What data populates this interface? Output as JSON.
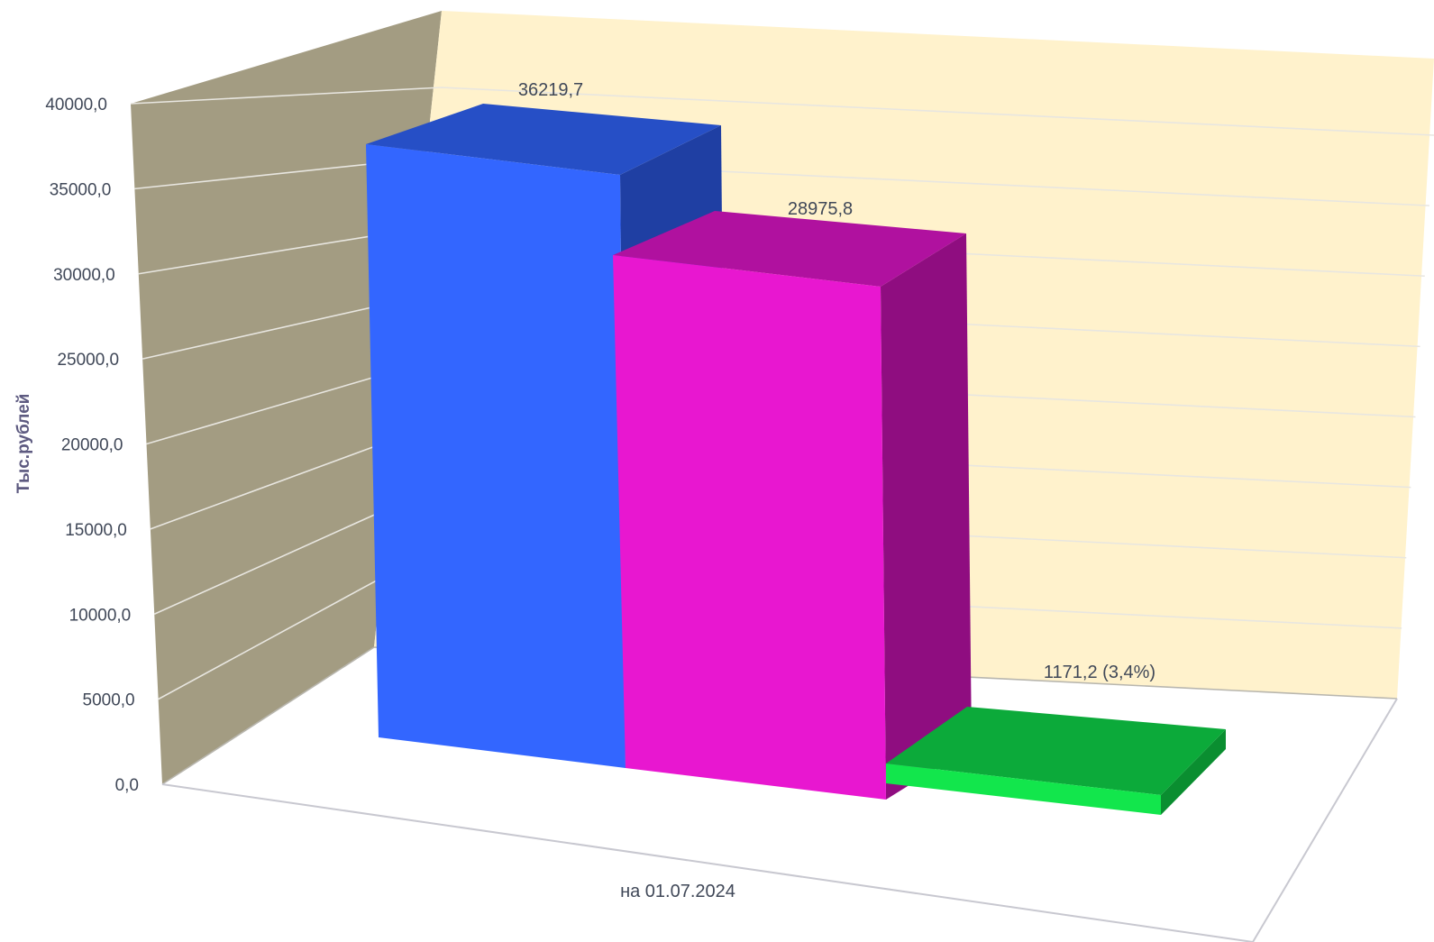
{
  "chart_data": {
    "type": "bar",
    "style": "3d-column",
    "title": "",
    "xlabel": "",
    "ylabel": "Тыс.рублей",
    "ylim": [
      0,
      40000
    ],
    "ytick_step": 5000,
    "y_tick_labels": [
      "0,0",
      "5000,0",
      "10000,0",
      "15000,0",
      "20000,0",
      "25000,0",
      "30000,0",
      "35000,0",
      "40000,0"
    ],
    "categories": [
      "на 01.07.2024"
    ],
    "grid": true,
    "series": [
      {
        "values": [
          36219.7
        ],
        "data_label": "36219,7",
        "color": "#3366ff",
        "top_color": "#264fc6",
        "side_color": "#1f3fa3"
      },
      {
        "values": [
          28975.8
        ],
        "data_label": "28975,8",
        "color": "#e817d0",
        "top_color": "#b0119f",
        "side_color": "#8f0d80"
      },
      {
        "values": [
          1171.2
        ],
        "data_label": "1171,2 (3,4%)",
        "color": "#12e64c",
        "top_color": "#0caa3a",
        "side_color": "#0a8e30"
      }
    ],
    "colors": {
      "side_wall": "#a39c82",
      "back_wall": "#fff2cc",
      "gridline": "#dcdce4",
      "floor_line": "#c8c8d0"
    }
  }
}
